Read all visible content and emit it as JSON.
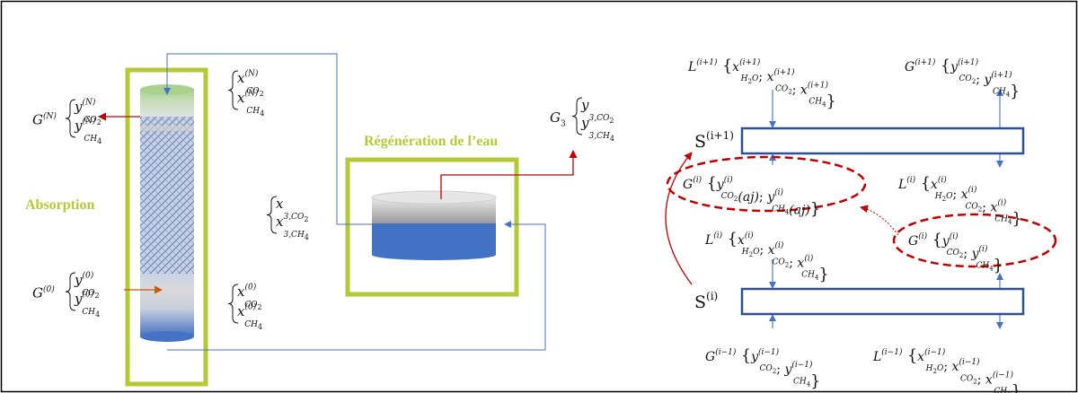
{
  "labels": {
    "absorption": "Absorption",
    "regeneration": "Régénération de l’eau"
  },
  "left": {
    "G_top": {
      "main": "G",
      "sup": "(N)",
      "lines": [
        {
          "v": "y",
          "sup": "(N)",
          "sub": "CO",
          "sub2": "2"
        },
        {
          "v": "y",
          "sup": "(N)",
          "sub": "CH",
          "sub2": "4"
        }
      ]
    },
    "G_bot": {
      "main": "G",
      "sup": "(0)",
      "lines": [
        {
          "v": "y",
          "sup": "(0)",
          "sub": "CO",
          "sub2": "2"
        },
        {
          "v": "y",
          "sup": "(0)",
          "sub": "CH",
          "sub2": "4"
        }
      ]
    },
    "x_top": {
      "lines": [
        {
          "v": "x",
          "sup": "(N)",
          "sub": "CO",
          "sub2": "2"
        },
        {
          "v": "x",
          "sup": "(N)",
          "sub": "CH",
          "sub2": "4"
        }
      ]
    },
    "x_bot": {
      "lines": [
        {
          "v": "x",
          "sup": "(0)",
          "sub": "CO",
          "sub2": "2"
        },
        {
          "v": "x",
          "sup": "(0)",
          "sub": "CH",
          "sub2": "4"
        }
      ]
    },
    "x3": {
      "lines": [
        {
          "v": "x",
          "sub": "3,CO",
          "sub2": "2"
        },
        {
          "v": "x",
          "sub": "3,CH",
          "sub2": "4"
        }
      ]
    },
    "G3": {
      "main": "G",
      "mainsub": "3",
      "lines": [
        {
          "v": "y",
          "sub": "3,CO",
          "sub2": "2"
        },
        {
          "v": "y",
          "sub": "3,CH",
          "sub2": "4"
        }
      ]
    }
  },
  "right": {
    "stage_top": "S",
    "stage_top_sup": "(i+1)",
    "stage_bot": "S",
    "stage_bot_sup": "(i)",
    "L_ip1": {
      "main": "L",
      "sup": "(i+1)",
      "items": [
        {
          "v": "x",
          "sup": "(i+1)",
          "sub": "H",
          "sub2": "2",
          "sub3": "O"
        },
        {
          "v": "x",
          "sup": "(i+1)",
          "sub": "CO",
          "sub2": "2"
        },
        {
          "v": "x",
          "sup": "(i+1)",
          "sub": "CH",
          "sub2": "4"
        }
      ]
    },
    "G_ip1": {
      "main": "G",
      "sup": "(i+1)",
      "items": [
        {
          "v": "y",
          "sup": "(i+1)",
          "sub": "CO",
          "sub2": "2"
        },
        {
          "v": "y",
          "sup": "(i+1)",
          "sub": "CH",
          "sub2": "4"
        }
      ]
    },
    "G_i_aj": {
      "main": "G",
      "sup": "(i)",
      "items": [
        {
          "v": "y",
          "sup": "(i)",
          "sub": "CO",
          "sub2": "2",
          "tail": "(aj)"
        },
        {
          "v": "y",
          "sup": "(i)",
          "sub": "CH",
          "sub2": "4",
          "tail": "(aj)"
        }
      ]
    },
    "L_i_right": {
      "main": "L",
      "sup": "(i)",
      "items": [
        {
          "v": "x",
          "sup": "(i)",
          "sub": "H",
          "sub2": "2",
          "sub3": "O"
        },
        {
          "v": "x",
          "sup": "(i)",
          "sub": "CO",
          "sub2": "2"
        },
        {
          "v": "x",
          "sup": "(i)",
          "sub": "CH",
          "sub2": "4"
        }
      ]
    },
    "L_i_left": {
      "main": "L",
      "sup": "(i)",
      "items": [
        {
          "v": "x",
          "sup": "(i)",
          "sub": "H",
          "sub2": "2",
          "sub3": "O"
        },
        {
          "v": "x",
          "sup": "(i)",
          "sub": "CO",
          "sub2": "2"
        },
        {
          "v": "x",
          "sup": "(i)",
          "sub": "CH",
          "sub2": "4"
        }
      ]
    },
    "G_i": {
      "main": "G",
      "sup": "(i)",
      "items": [
        {
          "v": "y",
          "sup": "(i)",
          "sub": "CO",
          "sub2": "2"
        },
        {
          "v": "y",
          "sup": "(i)",
          "sub": "CH",
          "sub2": "4"
        }
      ]
    },
    "G_im1": {
      "main": "G",
      "sup": "(i−1)",
      "items": [
        {
          "v": "y",
          "sup": "(i−1)",
          "sub": "CO",
          "sub2": "2"
        },
        {
          "v": "y",
          "sup": "(i−1)",
          "sub": "CH",
          "sub2": "4"
        }
      ]
    },
    "L_im1": {
      "main": "L",
      "sup": "(i−1)",
      "items": [
        {
          "v": "x",
          "sup": "(i−1)",
          "sub": "H",
          "sub2": "2",
          "sub3": "O"
        },
        {
          "v": "x",
          "sup": "(i−1)",
          "sub": "CO",
          "sub2": "2"
        },
        {
          "v": "x",
          "sup": "(i−1)",
          "sub": "CH",
          "sub2": "4"
        }
      ]
    }
  },
  "colors": {
    "green_frame": "#b5c935",
    "blue_line": "#4472c4",
    "dark_blue": "#2f4f8f",
    "red": "#c00000",
    "orange": "#c55a11",
    "liquid": "#4472c4",
    "foam": "#a9d18e"
  }
}
